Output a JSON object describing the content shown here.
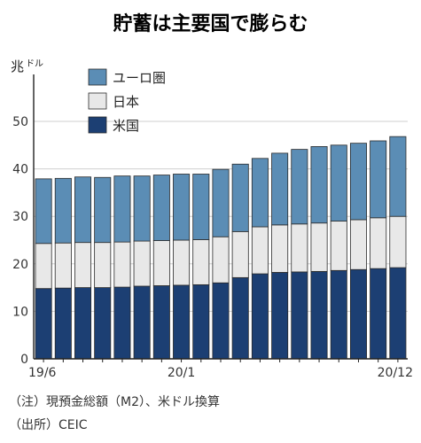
{
  "chart_data": {
    "type": "bar",
    "stacked": true,
    "title": "貯蓄は主要国で膨らむ",
    "ylabel": "兆ドル",
    "y_unit_main": "兆",
    "y_unit_small": "ドル",
    "ylim": [
      0,
      50
    ],
    "yticks": [
      0,
      10,
      20,
      30,
      40,
      50
    ],
    "categories": [
      "19/6",
      "19/7",
      "19/8",
      "19/9",
      "19/10",
      "19/11",
      "19/12",
      "20/1",
      "20/2",
      "20/3",
      "20/4",
      "20/5",
      "20/6",
      "20/7",
      "20/8",
      "20/9",
      "20/10",
      "20/11",
      "20/12"
    ],
    "x_tick_labels": [
      {
        "index": 0,
        "label": "19/6"
      },
      {
        "index": 7,
        "label": "20/1"
      },
      {
        "index": 18,
        "label": "20/12"
      }
    ],
    "series": [
      {
        "name": "米国",
        "color": "#1c3f73",
        "values": [
          14.8,
          14.9,
          15.0,
          15.0,
          15.1,
          15.3,
          15.4,
          15.5,
          15.6,
          16.0,
          17.1,
          17.9,
          18.2,
          18.3,
          18.4,
          18.6,
          18.8,
          19.0,
          19.2
        ]
      },
      {
        "name": "日本",
        "color": "#e8e8e8",
        "values": [
          9.5,
          9.5,
          9.5,
          9.5,
          9.5,
          9.5,
          9.5,
          9.5,
          9.5,
          9.7,
          9.7,
          9.9,
          10.0,
          10.1,
          10.2,
          10.4,
          10.5,
          10.7,
          10.8
        ]
      },
      {
        "name": "ユーロ圏",
        "color": "#5b8db5",
        "values": [
          13.6,
          13.6,
          13.8,
          13.7,
          13.9,
          13.7,
          13.8,
          13.9,
          13.8,
          14.2,
          14.2,
          14.4,
          15.1,
          15.7,
          16.1,
          16.0,
          16.1,
          16.2,
          16.8
        ]
      }
    ],
    "legend": {
      "placement": "top-left",
      "order": [
        "ユーロ圏",
        "日本",
        "米国"
      ]
    },
    "grid": {
      "y": true,
      "x": false
    },
    "notes": [
      "（注）現預金総額（M2）、米ドル換算",
      "（出所）CEIC"
    ]
  }
}
